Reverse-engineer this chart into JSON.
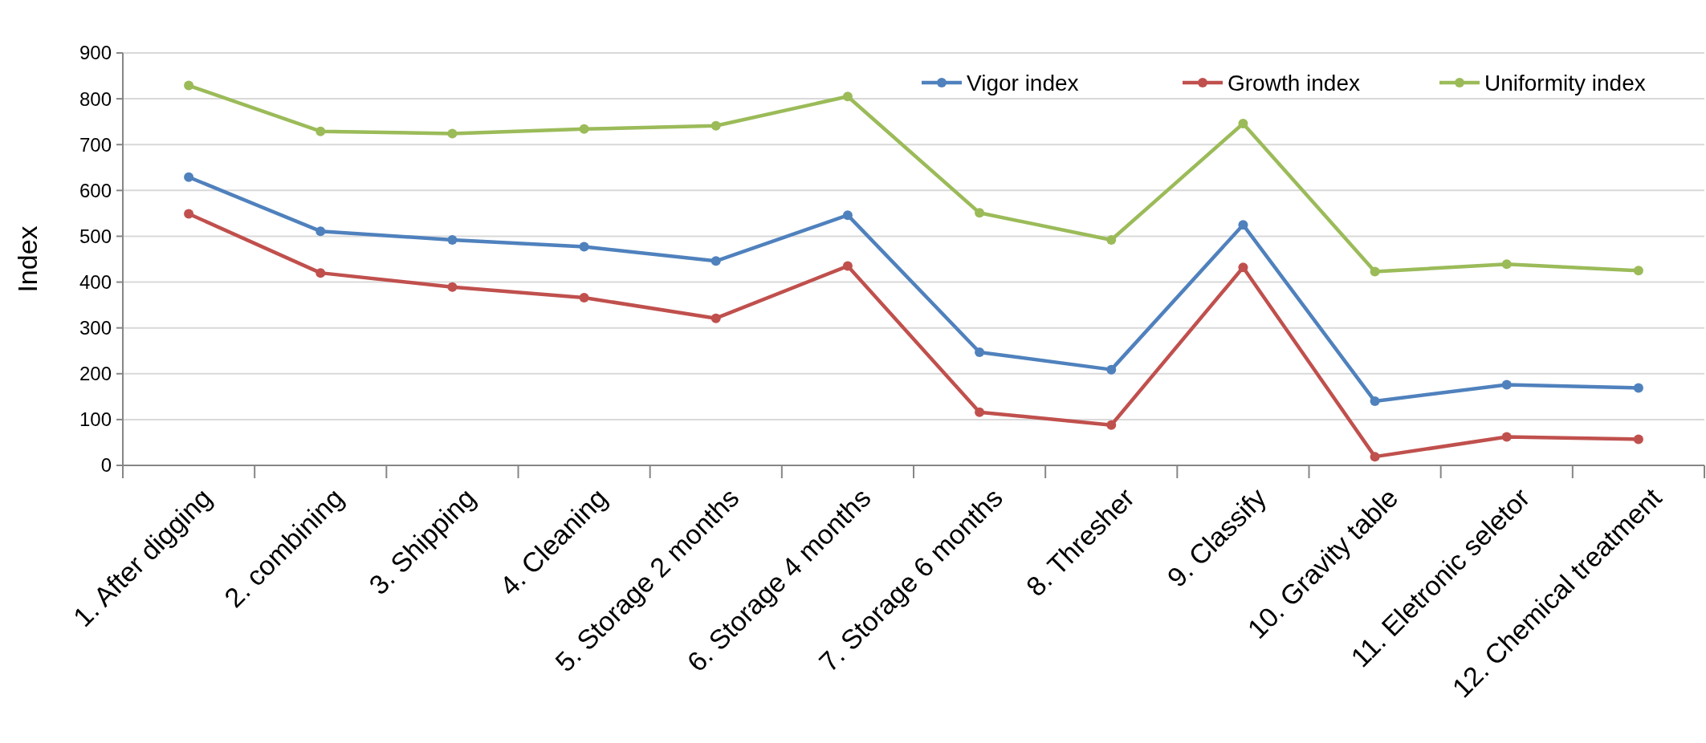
{
  "chart_data": {
    "type": "line",
    "ylabel": "Index",
    "categories": [
      "1. After digging",
      "2.  combining",
      "3. Shipping",
      "4. Cleaning",
      "5. Storage 2 months",
      "6. Storage 4 months",
      "7. Storage 6 months",
      "8. Thresher",
      "9. Classify",
      "10. Gravity table",
      "11. Eletronic seletor",
      "12. Chemical treatment"
    ],
    "series": [
      {
        "name": "Vigor index",
        "color": "#4f81bd",
        "values": [
          629,
          511,
          492,
          477,
          446,
          546,
          247,
          209,
          525,
          140,
          176,
          169
        ]
      },
      {
        "name": "Growth index",
        "color": "#c0504d",
        "values": [
          549,
          420,
          389,
          366,
          321,
          435,
          116,
          88,
          432,
          19,
          62,
          57
        ]
      },
      {
        "name": "Uniformity index",
        "color": "#9bbb59",
        "values": [
          829,
          729,
          724,
          734,
          741,
          805,
          551,
          492,
          746,
          423,
          439,
          425
        ]
      }
    ],
    "ylim": [
      0,
      900
    ],
    "yticks": [
      0,
      100,
      200,
      300,
      400,
      500,
      600,
      700,
      800,
      900
    ],
    "grid": "y",
    "legend": "top right",
    "marker": "circle",
    "line_style": "solid"
  }
}
